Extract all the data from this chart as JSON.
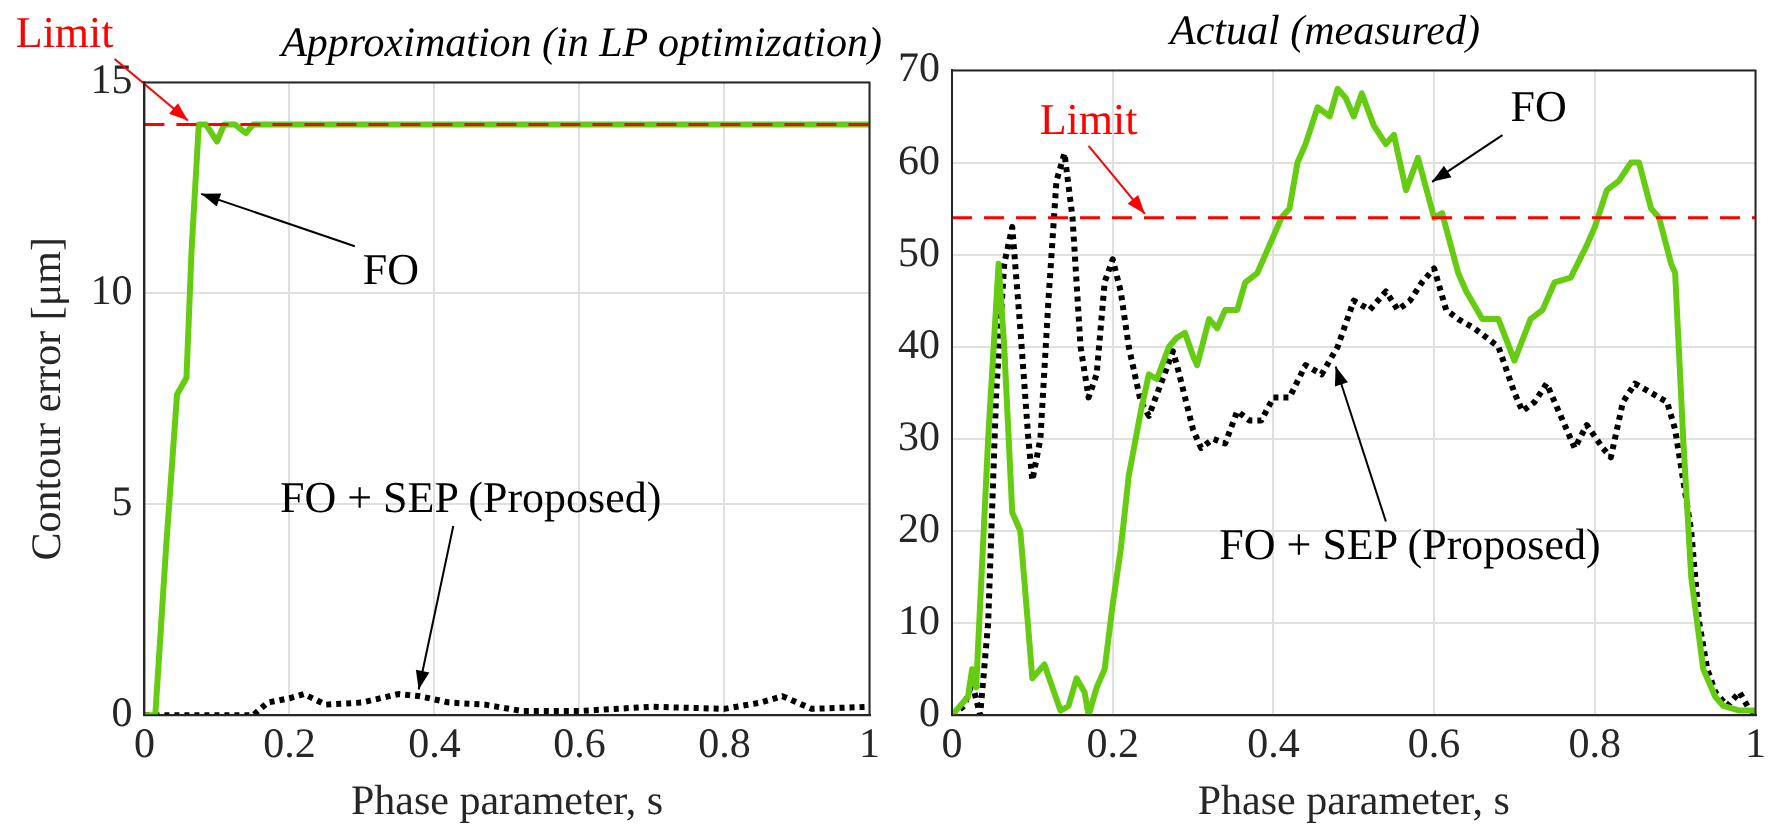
{
  "chart_data": [
    {
      "type": "line",
      "title": "Approximation (in LP optimization)",
      "xlabel": "Phase parameter, s",
      "ylabel": "Contour error [μm]",
      "xlim": [
        0,
        1
      ],
      "xticks": [
        0,
        0.2,
        0.4,
        0.6,
        0.8,
        1
      ],
      "ylim": [
        0,
        15
      ],
      "yticks": [
        0,
        5,
        10,
        15
      ],
      "grid": true,
      "legend": false,
      "marker": "none",
      "ref_lines": [
        {
          "axis": "y",
          "value": 14,
          "label": "Limit",
          "color": "#ff0000",
          "line_style": "dashed"
        }
      ],
      "series": [
        {
          "name": "FO",
          "color": "#66cc11",
          "line_style": "solid",
          "x": [
            0,
            0.015,
            0.03,
            0.045,
            0.058,
            0.065,
            0.075,
            0.085,
            0.1,
            0.11,
            0.125,
            0.14,
            0.15,
            0.2,
            0.4,
            0.6,
            0.8,
            1
          ],
          "values": [
            0,
            0,
            4,
            7.6,
            8,
            11,
            14,
            14,
            13.6,
            14,
            14,
            13.8,
            14,
            14,
            14,
            14,
            14,
            14
          ]
        },
        {
          "name": "FO + SEP (Proposed)",
          "color": "#000000",
          "line_style": "dotted",
          "x": [
            0,
            0.15,
            0.17,
            0.2,
            0.22,
            0.25,
            0.3,
            0.35,
            0.38,
            0.42,
            0.47,
            0.52,
            0.6,
            0.7,
            0.8,
            0.85,
            0.88,
            0.92,
            1
          ],
          "values": [
            0,
            0,
            0.3,
            0.4,
            0.5,
            0.25,
            0.3,
            0.5,
            0.45,
            0.3,
            0.25,
            0.1,
            0.1,
            0.2,
            0.15,
            0.3,
            0.45,
            0.15,
            0.2
          ]
        }
      ]
    },
    {
      "type": "line",
      "title": "Actual (measured)",
      "xlabel": "Phase parameter, s",
      "xlim": [
        0,
        1
      ],
      "xticks": [
        0,
        0.2,
        0.4,
        0.6,
        0.8,
        1
      ],
      "ylim": [
        0,
        70
      ],
      "yticks": [
        0,
        10,
        20,
        30,
        40,
        50,
        60,
        70
      ],
      "grid": true,
      "legend": false,
      "marker": "none",
      "ref_lines": [
        {
          "axis": "y",
          "value": 54,
          "label": "Limit",
          "color": "#ff0000",
          "line_style": "dashed"
        }
      ],
      "series": [
        {
          "name": "FO",
          "color": "#66cc11",
          "line_style": "solid",
          "x": [
            0,
            0.02,
            0.025,
            0.03,
            0.045,
            0.058,
            0.065,
            0.075,
            0.085,
            0.1,
            0.115,
            0.125,
            0.135,
            0.145,
            0.155,
            0.165,
            0.17,
            0.18,
            0.19,
            0.2,
            0.21,
            0.22,
            0.235,
            0.245,
            0.255,
            0.27,
            0.28,
            0.29,
            0.3,
            0.305,
            0.32,
            0.33,
            0.34,
            0.355,
            0.365,
            0.38,
            0.4,
            0.41,
            0.42,
            0.43,
            0.44,
            0.455,
            0.47,
            0.48,
            0.49,
            0.5,
            0.51,
            0.525,
            0.54,
            0.55,
            0.565,
            0.58,
            0.6,
            0.61,
            0.63,
            0.64,
            0.66,
            0.68,
            0.7,
            0.72,
            0.735,
            0.75,
            0.77,
            0.79,
            0.8,
            0.815,
            0.83,
            0.845,
            0.855,
            0.87,
            0.88,
            0.895,
            0.9,
            0.91,
            0.92,
            0.935,
            0.95,
            0.96,
            0.98,
            1
          ],
          "values": [
            0,
            2,
            5,
            3,
            30,
            49,
            40,
            22,
            20,
            4,
            5.5,
            3,
            0.5,
            1,
            4,
            2.5,
            0,
            3,
            5,
            12,
            18,
            26,
            33,
            37,
            36.5,
            40,
            41,
            41.5,
            39,
            38,
            43,
            42,
            44,
            44,
            47,
            48,
            52,
            54,
            55,
            60,
            62,
            66,
            65,
            68,
            67,
            65,
            67.5,
            64,
            62,
            63,
            57,
            60.5,
            54,
            54.5,
            48,
            46,
            43,
            43,
            38.5,
            43,
            44,
            47,
            47.5,
            51,
            53,
            57,
            58,
            60,
            60,
            55,
            54,
            49,
            48,
            30,
            15,
            5,
            2,
            1,
            0.5,
            0.5
          ]
        },
        {
          "name": "FO + SEP (Proposed)",
          "color": "#000000",
          "line_style": "dotted",
          "x": [
            0,
            0.015,
            0.025,
            0.035,
            0.045,
            0.055,
            0.065,
            0.075,
            0.085,
            0.095,
            0.1,
            0.11,
            0.12,
            0.13,
            0.14,
            0.15,
            0.16,
            0.17,
            0.18,
            0.19,
            0.2,
            0.21,
            0.22,
            0.235,
            0.245,
            0.26,
            0.275,
            0.28,
            0.3,
            0.31,
            0.325,
            0.34,
            0.355,
            0.37,
            0.385,
            0.4,
            0.42,
            0.44,
            0.46,
            0.48,
            0.5,
            0.52,
            0.54,
            0.555,
            0.57,
            0.585,
            0.6,
            0.615,
            0.63,
            0.65,
            0.68,
            0.7,
            0.71,
            0.725,
            0.74,
            0.76,
            0.775,
            0.79,
            0.81,
            0.82,
            0.835,
            0.85,
            0.87,
            0.89,
            0.9,
            0.92,
            0.93,
            0.94,
            0.95,
            0.965,
            0.98,
            0.99,
            1
          ],
          "values": [
            0,
            1,
            3.5,
            0,
            10,
            35,
            49,
            53,
            42,
            30,
            25.5,
            30,
            45,
            58,
            61,
            54,
            40,
            34.5,
            37,
            47,
            49.5,
            46,
            40,
            34,
            32.5,
            36,
            39.5,
            38,
            31,
            29,
            30,
            29.5,
            33,
            32,
            32,
            34.5,
            34.5,
            38,
            37,
            40,
            45,
            44,
            46,
            44,
            45,
            47,
            48.5,
            44,
            43,
            42,
            40,
            35,
            33,
            34,
            36,
            32,
            29,
            31.5,
            29,
            28,
            34,
            36,
            35,
            34,
            31,
            20,
            10,
            5,
            2.5,
            1,
            2.5,
            1,
            0
          ]
        }
      ]
    }
  ]
}
